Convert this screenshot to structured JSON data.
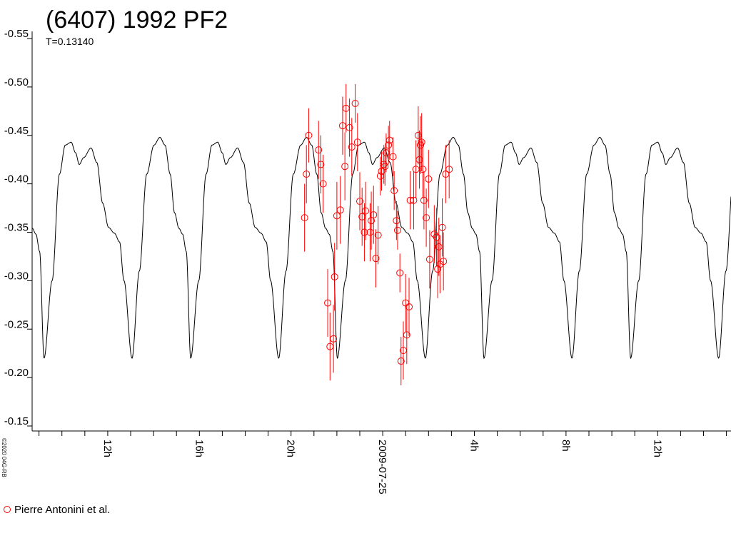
{
  "chart_data": {
    "type": "scatter",
    "title": "(6407) 1992 PF2",
    "subtitle": "T=0.13140",
    "y_axis": {
      "range": [
        -0.55,
        -0.15
      ],
      "ticks": [
        -0.55,
        -0.5,
        -0.45,
        -0.4,
        -0.35,
        -0.3,
        -0.25,
        -0.2,
        -0.15
      ],
      "tick_labels": [
        "-0.55",
        "-0.50",
        "-0.45",
        "-0.40",
        "-0.35",
        "-0.30",
        "-0.25",
        "-0.20",
        "-0.15"
      ]
    },
    "x_axis": {
      "unit": "hours relative to 2009-07-25 00:00",
      "range": [
        -15.3,
        15.2
      ],
      "minor_tick_step": 1,
      "labeled_ticks": [
        {
          "x": -12,
          "label": "12h"
        },
        {
          "x": -8,
          "label": "16h"
        },
        {
          "x": -4,
          "label": "20h"
        },
        {
          "x": 0,
          "label": "2009-07-25"
        },
        {
          "x": 4,
          "label": "4h"
        },
        {
          "x": 8,
          "label": "8h"
        },
        {
          "x": 12,
          "label": "12h"
        }
      ]
    },
    "model_curve": {
      "period_hours": 6.4,
      "first_minimum_x": -14.78,
      "line_color": "#000000"
    },
    "series": [
      {
        "name": "Pierre Antonini et al.",
        "color": "#ff0000",
        "points": [
          {
            "x": -3.41,
            "y": -0.365,
            "err": 0.035
          },
          {
            "x": -3.33,
            "y": -0.41,
            "err": 0.03
          },
          {
            "x": -3.23,
            "y": -0.45,
            "err": 0.028
          },
          {
            "x": -2.8,
            "y": -0.435,
            "err": 0.03
          },
          {
            "x": -2.7,
            "y": -0.42,
            "err": 0.03
          },
          {
            "x": -2.6,
            "y": -0.4,
            "err": 0.03
          },
          {
            "x": -2.4,
            "y": -0.277,
            "err": 0.035
          },
          {
            "x": -2.3,
            "y": -0.232,
            "err": 0.035
          },
          {
            "x": -2.15,
            "y": -0.24,
            "err": 0.035
          },
          {
            "x": -2.1,
            "y": -0.304,
            "err": 0.035
          },
          {
            "x": -2.0,
            "y": -0.367,
            "err": 0.035
          },
          {
            "x": -1.85,
            "y": -0.373,
            "err": 0.035
          },
          {
            "x": -1.75,
            "y": -0.46,
            "err": 0.03
          },
          {
            "x": -1.65,
            "y": -0.418,
            "err": 0.035
          },
          {
            "x": -1.6,
            "y": -0.478,
            "err": 0.025
          },
          {
            "x": -1.45,
            "y": -0.458,
            "err": 0.03
          },
          {
            "x": -1.35,
            "y": -0.438,
            "err": 0.03
          },
          {
            "x": -1.2,
            "y": -0.483,
            "err": 0.02
          },
          {
            "x": -1.1,
            "y": -0.443,
            "err": 0.03
          },
          {
            "x": -1.0,
            "y": -0.382,
            "err": 0.03
          },
          {
            "x": -0.9,
            "y": -0.366,
            "err": 0.03
          },
          {
            "x": -0.8,
            "y": -0.35,
            "err": 0.03
          },
          {
            "x": -0.75,
            "y": -0.372,
            "err": 0.03
          },
          {
            "x": -0.55,
            "y": -0.35,
            "err": 0.03
          },
          {
            "x": -0.5,
            "y": -0.362,
            "err": 0.03
          },
          {
            "x": -0.4,
            "y": -0.368,
            "err": 0.03
          },
          {
            "x": -0.3,
            "y": -0.323,
            "err": 0.03
          },
          {
            "x": -0.2,
            "y": -0.347,
            "err": 0.03
          },
          {
            "x": -0.1,
            "y": -0.408,
            "err": 0.02
          },
          {
            "x": -0.05,
            "y": -0.413,
            "err": 0.02
          },
          {
            "x": 0.05,
            "y": -0.42,
            "err": 0.02
          },
          {
            "x": 0.1,
            "y": -0.418,
            "err": 0.02
          },
          {
            "x": 0.15,
            "y": -0.432,
            "err": 0.02
          },
          {
            "x": 0.25,
            "y": -0.44,
            "err": 0.02
          },
          {
            "x": 0.3,
            "y": -0.445,
            "err": 0.02
          },
          {
            "x": 0.45,
            "y": -0.428,
            "err": 0.02
          },
          {
            "x": 0.5,
            "y": -0.393,
            "err": 0.02
          },
          {
            "x": 0.6,
            "y": -0.362,
            "err": 0.02
          },
          {
            "x": 0.65,
            "y": -0.352,
            "err": 0.02
          },
          {
            "x": 0.75,
            "y": -0.308,
            "err": 0.02
          },
          {
            "x": 0.8,
            "y": -0.217,
            "err": 0.025
          },
          {
            "x": 0.9,
            "y": -0.228,
            "err": 0.03
          },
          {
            "x": 1.0,
            "y": -0.277,
            "err": 0.03
          },
          {
            "x": 1.05,
            "y": -0.244,
            "err": 0.03
          },
          {
            "x": 1.15,
            "y": -0.273,
            "err": 0.03
          },
          {
            "x": 1.2,
            "y": -0.383,
            "err": 0.03
          },
          {
            "x": 1.35,
            "y": -0.383,
            "err": 0.03
          },
          {
            "x": 1.45,
            "y": -0.415,
            "err": 0.03
          },
          {
            "x": 1.55,
            "y": -0.45,
            "err": 0.03
          },
          {
            "x": 1.6,
            "y": -0.425,
            "err": 0.03
          },
          {
            "x": 1.65,
            "y": -0.44,
            "err": 0.03
          },
          {
            "x": 1.7,
            "y": -0.443,
            "err": 0.03
          },
          {
            "x": 1.75,
            "y": -0.415,
            "err": 0.03
          },
          {
            "x": 1.8,
            "y": -0.383,
            "err": 0.03
          },
          {
            "x": 1.9,
            "y": -0.365,
            "err": 0.03
          },
          {
            "x": 2.0,
            "y": -0.405,
            "err": 0.03
          },
          {
            "x": 2.05,
            "y": -0.322,
            "err": 0.03
          },
          {
            "x": 2.25,
            "y": -0.348,
            "err": 0.03
          },
          {
            "x": 2.35,
            "y": -0.345,
            "err": 0.03
          },
          {
            "x": 2.4,
            "y": -0.312,
            "err": 0.03
          },
          {
            "x": 2.45,
            "y": -0.335,
            "err": 0.03
          },
          {
            "x": 2.5,
            "y": -0.317,
            "err": 0.03
          },
          {
            "x": 2.6,
            "y": -0.355,
            "err": 0.03
          },
          {
            "x": 2.65,
            "y": -0.32,
            "err": 0.03
          },
          {
            "x": 2.75,
            "y": -0.41,
            "err": 0.03
          },
          {
            "x": 2.9,
            "y": -0.415,
            "err": 0.03
          }
        ]
      }
    ],
    "legend": {
      "position": "bottom-left",
      "label": "Pierre Antonini et al."
    },
    "grid": false,
    "copyright": "©2020 04G-RB"
  }
}
